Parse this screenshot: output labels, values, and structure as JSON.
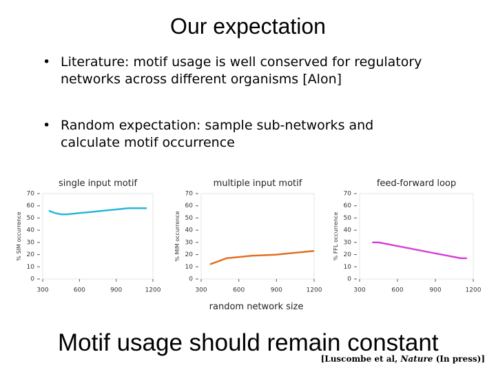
{
  "slide": {
    "title": "Our expectation",
    "bullets": [
      "Literature: motif usage is well conserved for regulatory networks across different organisms [Alon]",
      "Random expectation: sample sub-networks and calculate motif occurrence"
    ],
    "x_label": "random network size",
    "conclusion": "Motif usage should remain constant",
    "citation": {
      "before": "[Luscombe et al, ",
      "italic": "Nature",
      "after": " (In press)]"
    }
  },
  "chart_data": [
    {
      "type": "line",
      "title": "single input motif",
      "y_label": "% SIM occurrence",
      "color": "#29b6d8",
      "x": [
        350,
        400,
        450,
        500,
        600,
        700,
        800,
        900,
        1000,
        1100,
        1150
      ],
      "values": [
        56,
        54,
        53,
        53,
        54,
        55,
        56,
        57,
        58,
        58,
        58
      ],
      "xlim": [
        300,
        1200
      ],
      "xticks": [
        300,
        600,
        900,
        1200
      ],
      "ylim": [
        0,
        70
      ],
      "yticks": [
        0,
        10,
        20,
        30,
        40,
        50,
        60,
        70
      ]
    },
    {
      "type": "line",
      "title": "multiple input motif",
      "y_label": "% MIM occurrence",
      "color": "#e07020",
      "x": [
        370,
        450,
        500,
        600,
        700,
        800,
        900,
        1000,
        1100,
        1200
      ],
      "values": [
        12,
        15,
        17,
        18,
        19,
        19.5,
        20,
        21,
        22,
        23
      ],
      "xlim": [
        300,
        1200
      ],
      "xticks": [
        300,
        600,
        900,
        1200
      ],
      "ylim": [
        0,
        70
      ],
      "yticks": [
        0,
        10,
        20,
        30,
        40,
        50,
        60,
        70
      ]
    },
    {
      "type": "line",
      "title": "feed-forward loop",
      "y_label": "% FFL occurrence",
      "color": "#d63fd6",
      "x": [
        400,
        450,
        600,
        700,
        800,
        900,
        1000,
        1100,
        1150
      ],
      "values": [
        30,
        30,
        27,
        25,
        23,
        21,
        19,
        17,
        17
      ],
      "xlim": [
        300,
        1200
      ],
      "xticks": [
        300,
        600,
        900,
        1200
      ],
      "ylim": [
        0,
        70
      ],
      "yticks": [
        0,
        10,
        20,
        30,
        40,
        50,
        60,
        70
      ]
    }
  ]
}
